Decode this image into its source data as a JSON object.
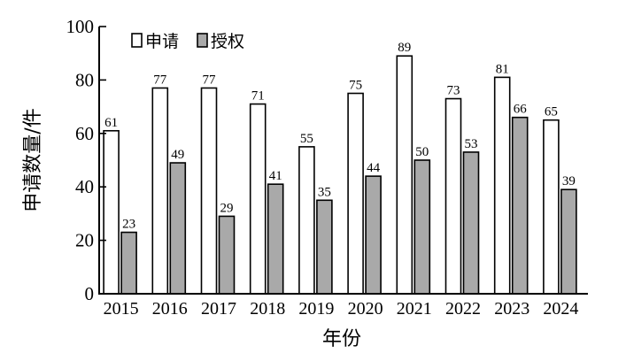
{
  "chart_data": {
    "type": "bar",
    "categories": [
      "2015",
      "2016",
      "2017",
      "2018",
      "2019",
      "2020",
      "2021",
      "2022",
      "2023",
      "2024"
    ],
    "series": [
      {
        "name": "申请",
        "values": [
          61,
          77,
          77,
          71,
          55,
          75,
          89,
          73,
          81,
          65
        ],
        "color": "#ffffff"
      },
      {
        "name": "授权",
        "values": [
          23,
          49,
          29,
          41,
          35,
          44,
          50,
          53,
          66,
          39
        ],
        "color": "#a9a9a9"
      }
    ],
    "title": "",
    "xlabel": "年份",
    "ylabel": "申请数量/件",
    "ylim": [
      0,
      100
    ],
    "yticks": [
      0,
      20,
      40,
      60,
      80,
      100
    ],
    "grid": false,
    "legend": "top-left",
    "data_labels": true
  }
}
